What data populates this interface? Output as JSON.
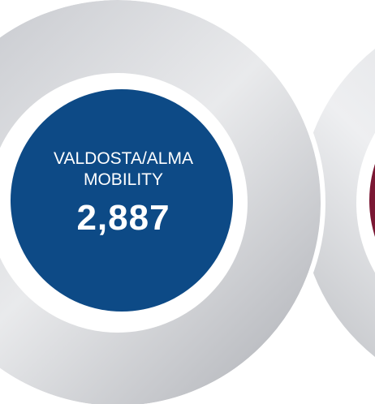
{
  "circles": [
    {
      "label": [
        "VALDOSTA/ALMA",
        "MOBILITY"
      ],
      "value": "2,887"
    }
  ]
}
